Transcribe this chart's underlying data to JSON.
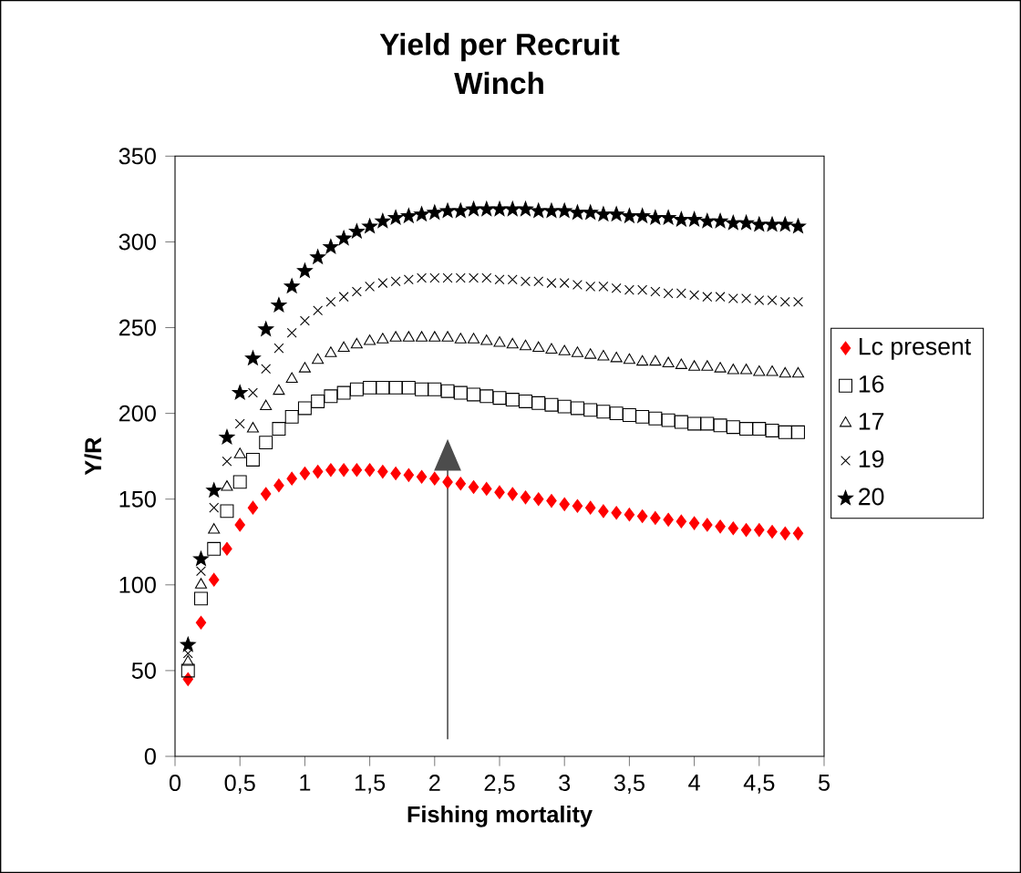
{
  "chart_data": {
    "type": "scatter",
    "title": "Yield per Recruit",
    "subtitle": "Winch",
    "xlabel": "Fishing mortality",
    "ylabel": "Y/R",
    "x": [
      0.1,
      0.2,
      0.3,
      0.4,
      0.5,
      0.6,
      0.7,
      0.8,
      0.9,
      1.0,
      1.1,
      1.2,
      1.3,
      1.4,
      1.5,
      1.6,
      1.7,
      1.8,
      1.9,
      2.0,
      2.1,
      2.2,
      2.3,
      2.4,
      2.5,
      2.6,
      2.7,
      2.8,
      2.9,
      3.0,
      3.1,
      3.2,
      3.3,
      3.4,
      3.5,
      3.6,
      3.7,
      3.8,
      3.9,
      4.0,
      4.1,
      4.2,
      4.3,
      4.4,
      4.5,
      4.6,
      4.7,
      4.8
    ],
    "series": [
      {
        "name": "Lc present",
        "color": "#ff0000",
        "marker": "diamond",
        "values": [
          45,
          78,
          103,
          121,
          135,
          145,
          153,
          158,
          162,
          165,
          166,
          167,
          167,
          167,
          167,
          166,
          165,
          164,
          163,
          162,
          160,
          159,
          157,
          156,
          154,
          153,
          151,
          150,
          149,
          147,
          146,
          145,
          143,
          142,
          141,
          140,
          139,
          138,
          137,
          136,
          135,
          134,
          133,
          132,
          132,
          131,
          130,
          130
        ]
      },
      {
        "name": "16",
        "color": "#000000",
        "marker": "square",
        "values": [
          50,
          92,
          121,
          143,
          160,
          173,
          183,
          191,
          198,
          203,
          207,
          210,
          212,
          214,
          215,
          215,
          215,
          215,
          214,
          214,
          213,
          212,
          211,
          210,
          209,
          208,
          207,
          206,
          205,
          204,
          203,
          202,
          201,
          200,
          199,
          198,
          197,
          196,
          195,
          194,
          194,
          193,
          192,
          191,
          191,
          190,
          189,
          189
        ]
      },
      {
        "name": "17",
        "color": "#000000",
        "marker": "triangle",
        "values": [
          55,
          100,
          132,
          157,
          176,
          191,
          204,
          213,
          220,
          226,
          231,
          235,
          238,
          240,
          242,
          243,
          244,
          244,
          244,
          244,
          244,
          243,
          243,
          242,
          241,
          240,
          239,
          238,
          237,
          236,
          235,
          234,
          233,
          232,
          231,
          230,
          230,
          229,
          228,
          227,
          227,
          226,
          225,
          225,
          224,
          224,
          223,
          223
        ]
      },
      {
        "name": "19",
        "color": "#000000",
        "marker": "cross",
        "values": [
          60,
          108,
          145,
          172,
          194,
          212,
          226,
          238,
          247,
          254,
          260,
          265,
          268,
          271,
          274,
          276,
          277,
          278,
          279,
          279,
          279,
          279,
          279,
          279,
          278,
          278,
          277,
          277,
          276,
          276,
          275,
          274,
          274,
          273,
          272,
          272,
          271,
          270,
          270,
          269,
          268,
          268,
          267,
          267,
          266,
          266,
          265,
          265
        ]
      },
      {
        "name": "20",
        "color": "#000000",
        "marker": "star",
        "values": [
          65,
          115,
          155,
          186,
          212,
          232,
          249,
          263,
          274,
          283,
          291,
          297,
          302,
          306,
          309,
          312,
          314,
          315,
          316,
          317,
          318,
          318,
          319,
          319,
          319,
          319,
          319,
          318,
          318,
          318,
          317,
          317,
          316,
          316,
          315,
          315,
          314,
          314,
          313,
          313,
          312,
          312,
          311,
          311,
          310,
          310,
          310,
          309
        ]
      }
    ],
    "xlim": [
      0,
      5
    ],
    "ylim": [
      0,
      350
    ],
    "xticks": [
      0,
      {
        "value": 0.5,
        "label": "0,5"
      },
      1,
      {
        "value": 1.5,
        "label": "1,5"
      },
      2,
      {
        "value": 2.5,
        "label": "2,5"
      },
      3,
      {
        "value": 3.5,
        "label": "3,5"
      },
      4,
      {
        "value": 4.5,
        "label": "4,5"
      },
      5
    ],
    "yticks": [
      0,
      50,
      100,
      150,
      200,
      250,
      300,
      350
    ],
    "grid": false,
    "legend": "right"
  }
}
